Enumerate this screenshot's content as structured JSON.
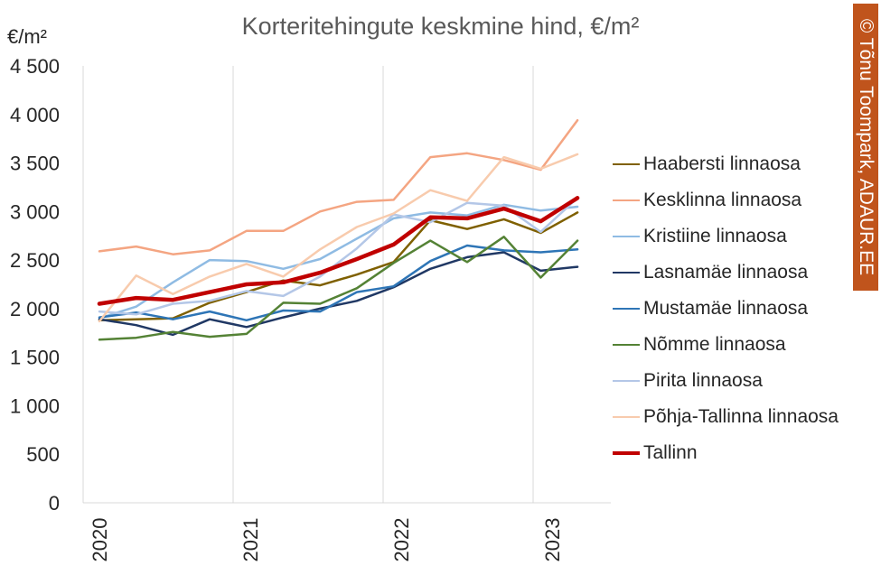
{
  "title": "Korteritehingute keskmine hind, €/m²",
  "copyright": "© Tõnu Toompark, ADAUR.EE",
  "chart_data": {
    "type": "line",
    "ylabel": "€/m²",
    "ylim": [
      0,
      4500
    ],
    "y_ticks": [
      {
        "value": 0,
        "label": "0"
      },
      {
        "value": 500,
        "label": "500"
      },
      {
        "value": 1000,
        "label": "1 000"
      },
      {
        "value": 1500,
        "label": "1 500"
      },
      {
        "value": 2000,
        "label": "2 000"
      },
      {
        "value": 2500,
        "label": "2 500"
      },
      {
        "value": 3000,
        "label": "3 000"
      },
      {
        "value": 3500,
        "label": "3 500"
      },
      {
        "value": 4000,
        "label": "4 000"
      },
      {
        "value": 4500,
        "label": "4 500"
      }
    ],
    "x_ticks": [
      "2020",
      "2021",
      "2022",
      "2023"
    ],
    "x": [
      "2020 Q1",
      "2020 Q2",
      "2020 Q3",
      "2020 Q4",
      "2021 Q1",
      "2021 Q2",
      "2021 Q3",
      "2021 Q4",
      "2022 Q1",
      "2022 Q2",
      "2022 Q3",
      "2022 Q4",
      "2023 Q1",
      "2023 Q2"
    ],
    "grid": "vertical at year boundaries",
    "legend_position": "right",
    "series": [
      {
        "name": "Haabersti linnaosa",
        "color": "#7f6000",
        "values": [
          1880,
          1890,
          1900,
          2060,
          2170,
          2290,
          2240,
          2350,
          2480,
          2910,
          2820,
          2920,
          2780,
          2990
        ]
      },
      {
        "name": "Kesklinna linnaosa",
        "color": "#f4a582",
        "values": [
          2590,
          2640,
          2560,
          2600,
          2800,
          2800,
          3000,
          3100,
          3120,
          3560,
          3600,
          3530,
          3430,
          3940
        ]
      },
      {
        "name": "Kristiine linnaosa",
        "color": "#8fbbe3",
        "values": [
          1900,
          2020,
          2270,
          2500,
          2490,
          2410,
          2510,
          2720,
          2930,
          2990,
          2960,
          3070,
          3010,
          3050
        ]
      },
      {
        "name": "Lasnamäe linnaosa",
        "color": "#203864",
        "values": [
          1890,
          1830,
          1730,
          1890,
          1810,
          1910,
          2000,
          2080,
          2220,
          2410,
          2530,
          2580,
          2390,
          2430
        ]
      },
      {
        "name": "Mustamäe linnaosa",
        "color": "#2e75b6",
        "values": [
          1910,
          1960,
          1890,
          1970,
          1880,
          1980,
          1970,
          2170,
          2230,
          2490,
          2650,
          2600,
          2580,
          2610
        ]
      },
      {
        "name": "Nõmme linnaosa",
        "color": "#548235",
        "values": [
          1680,
          1700,
          1760,
          1710,
          1740,
          2060,
          2050,
          2210,
          2470,
          2700,
          2480,
          2740,
          2320,
          2700
        ]
      },
      {
        "name": "Pirita linnaosa",
        "color": "#b4c7e7",
        "values": [
          1970,
          1940,
          2050,
          2080,
          2180,
          2130,
          2330,
          2620,
          2970,
          2890,
          3090,
          3060,
          2790,
          3140
        ]
      },
      {
        "name": "Põhja-Tallinna linnaosa",
        "color": "#f8cbad",
        "values": [
          1870,
          2340,
          2150,
          2330,
          2460,
          2330,
          2610,
          2840,
          2980,
          3220,
          3110,
          3560,
          3440,
          3590
        ]
      },
      {
        "name": "Tallinn",
        "color": "#c00000",
        "values": [
          2050,
          2110,
          2090,
          2170,
          2250,
          2270,
          2370,
          2510,
          2660,
          2940,
          2930,
          3030,
          2900,
          3140
        ]
      }
    ]
  }
}
